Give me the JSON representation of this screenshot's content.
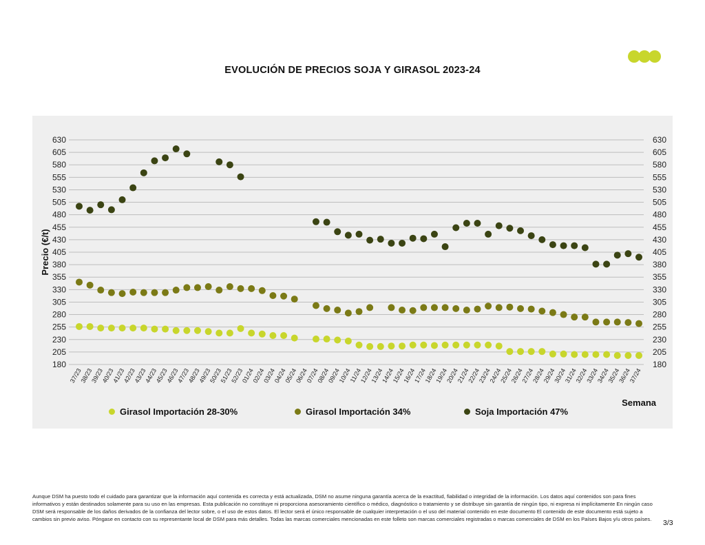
{
  "page": {
    "page_number": "3/3"
  },
  "brand": {
    "logo_color": "#c8d62c"
  },
  "disclaimer": "Aunque DSM ha puesto todo el cuidado para garantizar que la información aquí contenida es correcta y está actualizada, DSM no asume ninguna garantía acerca de la exactitud, fiabilidad o integridad de la información. Los datos aquí contenidos son para fines informativos y están destinados solamente para su uso en las empresas. Esta publicación no constituye ni proporciona asesoramiento científico o médico, diagnóstico o tratamiento y se distribuye sin garantía de ningún tipo, ni expresa ni implícitamente En ningún caso DSM será responsable de los daños derivados de la confianza del lector sobre, o el uso de estos datos. El lector será el único responsable de cualquier interpretación o el uso del material contenido en este documento El contenido de este documento está sujeto a cambios sin previo aviso. Póngase en contacto con su representante local de DSM para más detalles. Todas las marcas comerciales mencionadas en este folleto son marcas comerciales registradas o marcas comerciales de DSM en los Países Bajos y/u otros países.",
  "chart_data": {
    "type": "scatter",
    "title": "EVOLUCIÓN DE PRECIOS SOJA Y GIRASOL 2023-24",
    "xlabel": "Semana",
    "ylabel": "Precio (€/t)",
    "ylim": [
      180,
      630
    ],
    "yticks": [
      180,
      205,
      230,
      255,
      280,
      305,
      330,
      355,
      380,
      405,
      430,
      455,
      480,
      505,
      530,
      555,
      580,
      605,
      630
    ],
    "secondary_y_axis": true,
    "grid": true,
    "legend_position": "bottom",
    "categories": [
      "37/23",
      "38/23",
      "39/23",
      "40/23",
      "41/23",
      "42/23",
      "43/23",
      "44/23",
      "45/23",
      "46/23",
      "47/23",
      "48/23",
      "49/23",
      "50/23",
      "51/23",
      "52/23",
      "01/24",
      "02/24",
      "03/24",
      "04/24",
      "05/24",
      "06/24",
      "07/24",
      "08/24",
      "09/24",
      "10/24",
      "11/24",
      "12/24",
      "13/24",
      "14/24",
      "15/24",
      "16/24",
      "17/24",
      "18/24",
      "19/24",
      "20/24",
      "21/24",
      "22/24",
      "23/24",
      "24/24",
      "25/24",
      "26/24",
      "27/24",
      "28/24",
      "29/24",
      "30/24",
      "31/24",
      "32/24",
      "33/24",
      "34/24",
      "35/24",
      "36/24",
      "37/24"
    ],
    "series": [
      {
        "name": "Girasol Importación 28-30%",
        "color": "#c8d62c",
        "values": [
          256,
          256,
          253,
          253,
          253,
          253,
          253,
          251,
          251,
          248,
          248,
          248,
          246,
          243,
          243,
          252,
          243,
          241,
          238,
          238,
          233,
          null,
          231,
          231,
          229,
          227,
          219,
          216,
          216,
          217,
          217,
          219,
          219,
          218,
          219,
          219,
          219,
          219,
          219,
          217,
          206,
          206,
          206,
          206,
          201,
          201,
          200,
          200,
          200,
          200,
          198,
          198,
          198
        ]
      },
      {
        "name": "Girasol Importación 34%",
        "color": "#7b7a16",
        "values": [
          345,
          339,
          329,
          324,
          322,
          325,
          324,
          324,
          324,
          329,
          334,
          334,
          336,
          329,
          336,
          332,
          332,
          328,
          318,
          317,
          311,
          null,
          298,
          292,
          289,
          283,
          286,
          294,
          null,
          294,
          289,
          288,
          294,
          294,
          294,
          292,
          289,
          291,
          297,
          294,
          295,
          292,
          291,
          287,
          284,
          280,
          275,
          275,
          265,
          265,
          265,
          264,
          262
        ]
      },
      {
        "name": "Soja Importación 47%",
        "color": "#3b4413",
        "values": [
          497,
          489,
          500,
          490,
          510,
          534,
          564,
          588,
          594,
          612,
          602,
          null,
          null,
          586,
          580,
          556,
          null,
          null,
          null,
          null,
          null,
          null,
          466,
          465,
          446,
          439,
          441,
          429,
          431,
          423,
          423,
          433,
          432,
          441,
          416,
          454,
          463,
          463,
          441,
          458,
          453,
          448,
          438,
          430,
          420,
          418,
          418,
          414,
          381,
          381,
          399,
          402,
          395
        ]
      }
    ]
  }
}
